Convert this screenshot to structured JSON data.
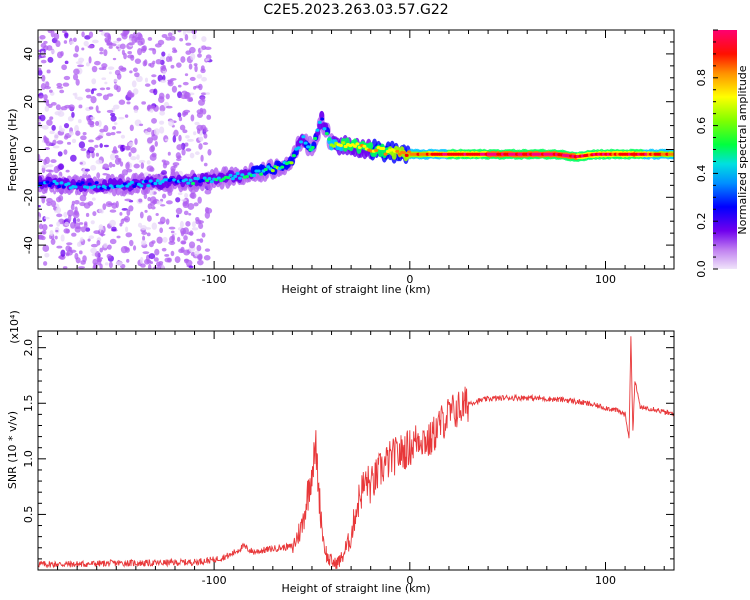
{
  "title": "C2E5.2023.263.03.57.G22",
  "chart_data": [
    {
      "type": "heatmap",
      "xlabel": "Height of straight line (km)",
      "ylabel": "Frequency (Hz)",
      "xlim": [
        -190,
        135
      ],
      "ylim": [
        -50,
        50
      ],
      "xticks": [
        -100,
        0,
        100
      ],
      "yticks": [
        -40,
        -20,
        0,
        20,
        40
      ],
      "grid": false,
      "colorbar": {
        "label": "Normalized spectral amplitude",
        "range": [
          0,
          1
        ],
        "ticks": [
          0.0,
          0.2,
          0.4,
          0.6,
          0.8
        ],
        "colors": [
          "#e8d8f8",
          "#b060f0",
          "#6a00f0",
          "#0000ff",
          "#00c8ff",
          "#00ff60",
          "#a0ff00",
          "#ffff00",
          "#ff8000",
          "#ff0000",
          "#ff0080"
        ]
      },
      "ridge": [
        {
          "x": -190,
          "y": -14,
          "a": 0.35
        },
        {
          "x": -170,
          "y": -15,
          "a": 0.38
        },
        {
          "x": -150,
          "y": -15,
          "a": 0.33
        },
        {
          "x": -130,
          "y": -14,
          "a": 0.35
        },
        {
          "x": -110,
          "y": -13,
          "a": 0.4
        },
        {
          "x": -95,
          "y": -12,
          "a": 0.42
        },
        {
          "x": -80,
          "y": -10,
          "a": 0.45
        },
        {
          "x": -70,
          "y": -8,
          "a": 0.5
        },
        {
          "x": -60,
          "y": -5,
          "a": 0.5
        },
        {
          "x": -55,
          "y": 5,
          "a": 0.4
        },
        {
          "x": -50,
          "y": 0,
          "a": 0.55
        },
        {
          "x": -45,
          "y": 13,
          "a": 0.35
        },
        {
          "x": -40,
          "y": 2,
          "a": 0.6
        },
        {
          "x": -30,
          "y": 2,
          "a": 0.7
        },
        {
          "x": -20,
          "y": 0,
          "a": 0.7
        },
        {
          "x": -10,
          "y": -1,
          "a": 0.75
        },
        {
          "x": 0,
          "y": -2,
          "a": 0.8
        },
        {
          "x": 20,
          "y": -2,
          "a": 0.9
        },
        {
          "x": 40,
          "y": -2,
          "a": 0.95
        },
        {
          "x": 60,
          "y": -2,
          "a": 0.98
        },
        {
          "x": 75,
          "y": -2,
          "a": 0.95
        },
        {
          "x": 85,
          "y": -3,
          "a": 0.95
        },
        {
          "x": 95,
          "y": -2,
          "a": 0.9
        },
        {
          "x": 105,
          "y": -2,
          "a": 0.9
        },
        {
          "x": 115,
          "y": -2,
          "a": 0.95
        },
        {
          "x": 125,
          "y": -2,
          "a": 0.85
        },
        {
          "x": 135,
          "y": -2,
          "a": 0.8
        }
      ]
    },
    {
      "type": "line",
      "xlabel": "Height of straight line (km)",
      "ylabel": "SNR (10 * v/v)",
      "ymultiplier": "(x10⁴)",
      "xlim": [
        -190,
        135
      ],
      "ylim": [
        0,
        2.15
      ],
      "xticks": [
        -100,
        0,
        100
      ],
      "yticks": [
        0.5,
        1.0,
        1.5,
        2.0
      ],
      "grid": false,
      "series": [
        {
          "color": "#e8383a",
          "x": [
            -190,
            -170,
            -150,
            -130,
            -110,
            -100,
            -92,
            -85,
            -80,
            -70,
            -60,
            -55,
            -50,
            -48,
            -46,
            -44,
            -42,
            -40,
            -38,
            -35,
            -30,
            -28,
            -25,
            -22,
            -20,
            -15,
            -10,
            -5,
            0,
            5,
            10,
            15,
            20,
            25,
            30,
            40,
            50,
            60,
            70,
            80,
            90,
            100,
            105,
            110,
            112,
            113,
            114,
            115,
            118,
            120,
            125,
            130,
            135
          ],
          "y": [
            0.04,
            0.04,
            0.05,
            0.05,
            0.06,
            0.08,
            0.12,
            0.2,
            0.15,
            0.18,
            0.2,
            0.4,
            0.9,
            1.1,
            0.6,
            0.25,
            0.1,
            0.08,
            0.05,
            0.1,
            0.3,
            0.5,
            0.7,
            0.8,
            0.75,
            0.9,
            1.0,
            1.05,
            1.1,
            1.2,
            1.15,
            1.3,
            1.4,
            1.45,
            1.5,
            1.54,
            1.55,
            1.55,
            1.54,
            1.53,
            1.5,
            1.46,
            1.44,
            1.4,
            1.2,
            2.1,
            1.25,
            1.7,
            1.45,
            1.46,
            1.45,
            1.42,
            1.4
          ]
        }
      ]
    }
  ]
}
